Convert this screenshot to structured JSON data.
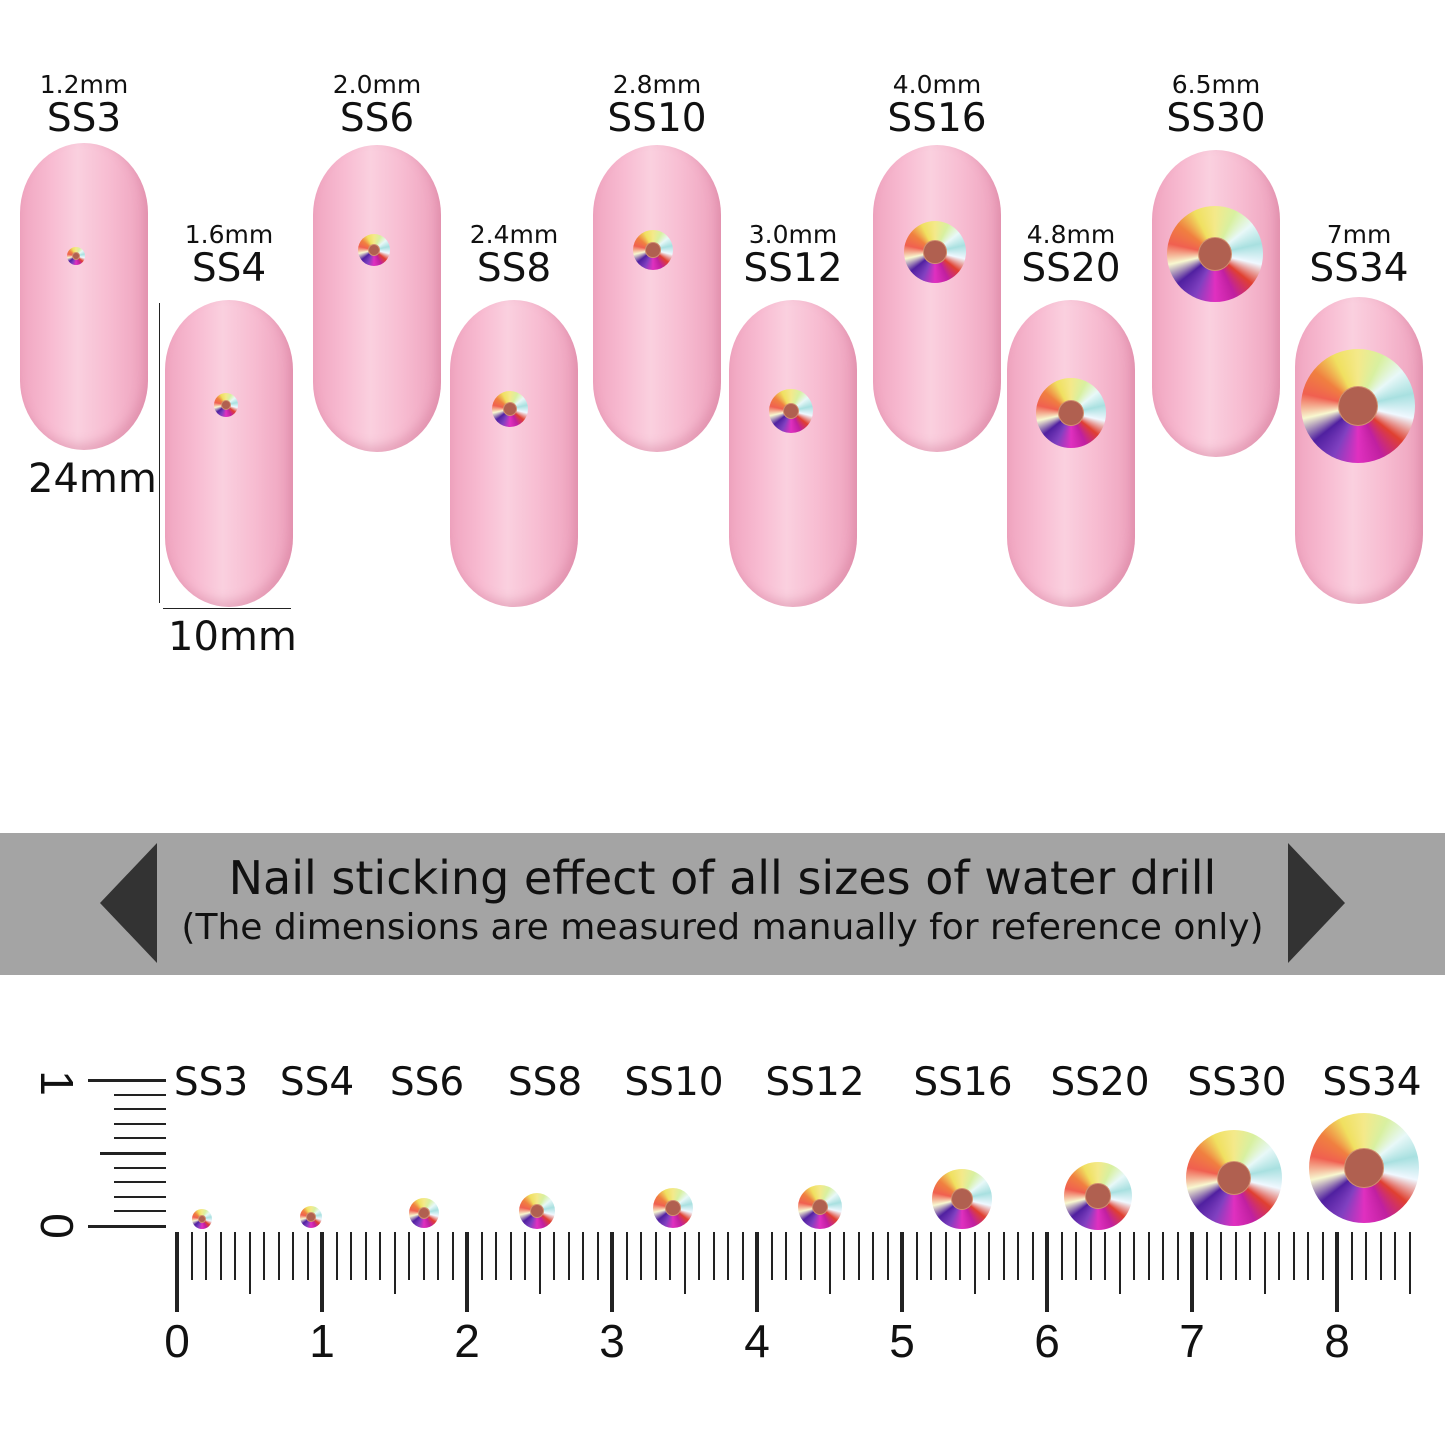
{
  "nails": [
    {
      "mm": "1.2mm",
      "ss": "SS3"
    },
    {
      "mm": "1.6mm",
      "ss": "SS4"
    },
    {
      "mm": "2.0mm",
      "ss": "SS6"
    },
    {
      "mm": "2.4mm",
      "ss": "SS8"
    },
    {
      "mm": "2.8mm",
      "ss": "SS10"
    },
    {
      "mm": "3.0mm",
      "ss": "SS12"
    },
    {
      "mm": "4.0mm",
      "ss": "SS16"
    },
    {
      "mm": "4.8mm",
      "ss": "SS20"
    },
    {
      "mm": "6.5mm",
      "ss": "SS30"
    },
    {
      "mm": "7mm",
      "ss": "SS34"
    }
  ],
  "nail_dimensions": {
    "length": "24mm",
    "width": "10mm"
  },
  "banner": {
    "title": "Nail sticking effect of all sizes of water drill",
    "subtitle": "(The dimensions are measured manually for reference only)",
    "color": "#a4a4a4"
  },
  "ruler": {
    "labels": [
      "SS3",
      "SS4",
      "SS6",
      "SS8",
      "SS10",
      "SS12",
      "SS16",
      "SS20",
      "SS30",
      "SS34"
    ],
    "horizontal_numbers": [
      "0",
      "1",
      "2",
      "3",
      "4",
      "5",
      "6",
      "7",
      "8"
    ],
    "vertical_numbers": [
      "0",
      "1"
    ]
  },
  "colors": {
    "nail": "#f8bcd2",
    "text": "#111111"
  }
}
